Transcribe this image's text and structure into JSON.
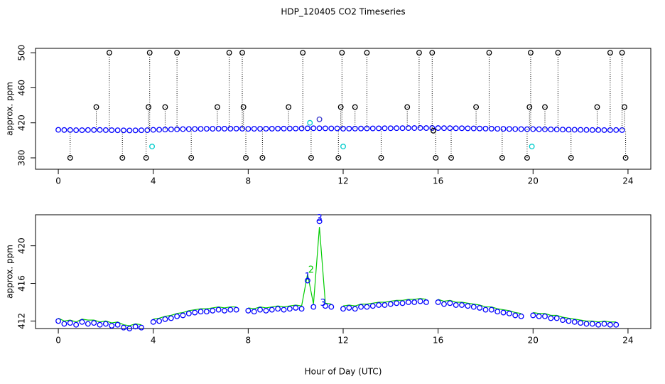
{
  "chart_data": [
    {
      "type": "scatter",
      "title": "HDP_120405  CO2 Timeseries",
      "ylabel": "approx. ppm",
      "xlim": [
        -0.96,
        24.96
      ],
      "ylim": [
        367,
        505
      ],
      "xticks": [
        0,
        4,
        8,
        12,
        16,
        20,
        24
      ],
      "yticks": [
        380,
        420,
        460,
        500
      ],
      "x": [
        0,
        0.25,
        0.5,
        0.75,
        1,
        1.25,
        1.5,
        1.75,
        2,
        2.25,
        2.5,
        2.75,
        3,
        3.25,
        3.5,
        3.75,
        4,
        4.25,
        4.5,
        4.75,
        5,
        5.25,
        5.5,
        5.75,
        6,
        6.25,
        6.5,
        6.75,
        7,
        7.25,
        7.5,
        7.75,
        8,
        8.25,
        8.5,
        8.75,
        9,
        9.25,
        9.5,
        9.75,
        10,
        10.25,
        10.5,
        10.75,
        11,
        11.25,
        11.5,
        11.75,
        12,
        12.25,
        12.5,
        12.75,
        13,
        13.25,
        13.5,
        13.75,
        14,
        14.25,
        14.5,
        14.75,
        15,
        15.25,
        15.5,
        15.75,
        16,
        16.25,
        16.5,
        16.75,
        17,
        17.25,
        17.5,
        17.75,
        18,
        18.25,
        18.5,
        18.75,
        19,
        19.25,
        19.5,
        19.75,
        20,
        20.25,
        20.5,
        20.75,
        21,
        21.25,
        21.5,
        21.75,
        22,
        22.25,
        22.5,
        22.75,
        23,
        23.25,
        23.5,
        23.75
      ],
      "series": [
        {
          "color": "#0000ff",
          "values": [
            412.0,
            411.8,
            411.8,
            411.6,
            411.6,
            411.8,
            411.8,
            411.9,
            411.7,
            411.6,
            411.5,
            411.4,
            411.3,
            411.4,
            411.5,
            411.6,
            412.0,
            412.1,
            412.3,
            412.5,
            412.6,
            412.8,
            412.9,
            413.0,
            413.1,
            413.2,
            413.2,
            413.3,
            413.3,
            413.3,
            413.4,
            413.3,
            413.1,
            413.2,
            413.2,
            413.3,
            413.3,
            413.4,
            413.4,
            413.5,
            413.5,
            413.6,
            413.7,
            413.8,
            413.8,
            413.7,
            413.6,
            413.6,
            413.3,
            413.4,
            413.4,
            413.5,
            413.6,
            413.6,
            413.7,
            413.8,
            413.8,
            413.9,
            413.9,
            414.0,
            414.0,
            414.1,
            414.0,
            414.1,
            414.0,
            413.9,
            413.9,
            413.8,
            413.8,
            413.7,
            413.6,
            413.5,
            413.4,
            413.3,
            413.2,
            413.1,
            413.0,
            412.9,
            412.8,
            412.7,
            412.8,
            412.7,
            412.6,
            412.5,
            412.4,
            412.3,
            412.2,
            412.1,
            412.0,
            411.9,
            411.8,
            411.8,
            411.7,
            411.7,
            411.8,
            411.7
          ]
        },
        {
          "color": "#000000",
          "drop_lines": true,
          "x": [
            0.5,
            1.6,
            2.15,
            2.7,
            3.7,
            3.8,
            3.85,
            4.5,
            5.0,
            5.6,
            6.7,
            7.2,
            7.75,
            7.8,
            7.9,
            8.6,
            9.7,
            10.3,
            10.65,
            11.8,
            11.9,
            11.95,
            12.5,
            13.0,
            13.6,
            14.7,
            15.2,
            15.75,
            15.8,
            15.9,
            16.55,
            17.6,
            18.15,
            18.7,
            19.75,
            19.85,
            19.9,
            20.5,
            21.05,
            21.6,
            22.7,
            23.25,
            23.75,
            23.85,
            23.9
          ],
          "values": [
            380,
            438,
            500,
            380,
            380,
            438,
            500,
            438,
            500,
            380,
            438,
            500,
            500,
            438,
            380,
            380,
            438,
            500,
            380,
            380,
            438,
            500,
            438,
            500,
            380,
            438,
            500,
            500,
            411,
            380,
            380,
            438,
            500,
            380,
            380,
            438,
            500,
            438,
            500,
            380,
            438,
            500,
            500,
            438,
            380
          ]
        },
        {
          "color": "#00cccc",
          "x": [
            3.95,
            10.6,
            12.0,
            19.95
          ],
          "values": [
            393,
            420,
            393,
            393
          ]
        },
        {
          "color": "#3333cc",
          "x": [
            11.0
          ],
          "values": [
            424
          ]
        }
      ]
    },
    {
      "type": "scatter",
      "ylabel": "approx. ppm",
      "xlabel": "Hour of Day (UTC)",
      "xlim": [
        -0.96,
        24.96
      ],
      "ylim": [
        411.2,
        423.3
      ],
      "xticks": [
        0,
        4,
        8,
        12,
        16,
        20,
        24
      ],
      "yticks": [
        412,
        416,
        420
      ],
      "x": [
        0,
        0.25,
        0.5,
        0.75,
        1,
        1.25,
        1.5,
        1.75,
        2,
        2.25,
        2.5,
        2.75,
        3,
        3.25,
        3.5,
        3.75,
        4,
        4.25,
        4.5,
        4.75,
        5,
        5.25,
        5.5,
        5.75,
        6,
        6.25,
        6.5,
        6.75,
        7,
        7.25,
        7.5,
        7.75,
        8,
        8.25,
        8.5,
        8.75,
        9,
        9.25,
        9.5,
        9.75,
        10,
        10.25,
        10.5,
        10.75,
        11,
        11.25,
        11.5,
        11.75,
        12,
        12.25,
        12.5,
        12.75,
        13,
        13.25,
        13.5,
        13.75,
        14,
        14.25,
        14.5,
        14.75,
        15,
        15.25,
        15.5,
        15.75,
        16,
        16.25,
        16.5,
        16.75,
        17,
        17.25,
        17.5,
        17.75,
        18,
        18.25,
        18.5,
        18.75,
        19,
        19.25,
        19.5,
        19.75,
        20,
        20.25,
        20.5,
        20.75,
        21,
        21.25,
        21.5,
        21.75,
        22,
        22.25,
        22.5,
        22.75,
        23,
        23.25,
        23.5,
        23.75
      ],
      "series": [
        {
          "color": "#00cc00",
          "style": "line",
          "values": [
            412.3,
            412.0,
            412.1,
            411.9,
            412.2,
            412.1,
            412.1,
            411.9,
            412.0,
            411.8,
            411.9,
            411.6,
            411.5,
            411.7,
            411.6,
            null,
            412.2,
            412.3,
            412.5,
            412.6,
            412.8,
            412.9,
            413.1,
            413.2,
            413.3,
            413.3,
            413.4,
            413.5,
            413.4,
            413.5,
            413.5,
            null,
            413.4,
            413.3,
            413.5,
            413.4,
            413.5,
            413.6,
            413.5,
            413.6,
            413.7,
            413.6,
            417.0,
            413.8,
            422.0,
            413.9,
            413.8,
            null,
            413.6,
            413.7,
            413.6,
            413.8,
            413.8,
            413.9,
            414.0,
            414.0,
            414.1,
            414.2,
            414.2,
            414.3,
            414.3,
            414.4,
            414.3,
            null,
            414.3,
            414.1,
            414.2,
            414.0,
            414.0,
            413.9,
            413.8,
            413.7,
            413.5,
            413.5,
            413.3,
            413.2,
            413.1,
            412.9,
            412.8,
            null,
            412.9,
            412.8,
            412.8,
            412.6,
            412.6,
            412.4,
            412.3,
            412.2,
            412.1,
            412.0,
            412.0,
            411.9,
            412.0,
            411.9,
            411.9,
            null
          ]
        },
        {
          "color": "#0000ff",
          "values": [
            412.0,
            411.7,
            411.8,
            411.6,
            411.9,
            411.7,
            411.8,
            411.6,
            411.7,
            411.5,
            411.6,
            411.3,
            411.2,
            411.4,
            411.3,
            null,
            411.9,
            412.0,
            412.2,
            412.3,
            412.5,
            412.6,
            412.8,
            412.9,
            413.0,
            413.0,
            413.1,
            413.2,
            413.1,
            413.2,
            413.2,
            null,
            413.1,
            413.0,
            413.2,
            413.1,
            413.2,
            413.3,
            413.2,
            413.3,
            413.4,
            413.3,
            416.3,
            413.5,
            422.6,
            413.6,
            413.5,
            null,
            413.3,
            413.4,
            413.3,
            413.5,
            413.5,
            413.6,
            413.7,
            413.7,
            413.8,
            413.9,
            413.9,
            414.0,
            414.0,
            414.1,
            414.0,
            null,
            414.0,
            413.8,
            413.9,
            413.7,
            413.7,
            413.6,
            413.5,
            413.4,
            413.2,
            413.2,
            413.0,
            412.9,
            412.8,
            412.6,
            412.5,
            null,
            412.6,
            412.5,
            412.5,
            412.3,
            412.3,
            412.1,
            412.0,
            411.9,
            411.8,
            411.7,
            411.7,
            411.6,
            411.7,
            411.6,
            411.6,
            null
          ]
        }
      ],
      "annotations": [
        {
          "x": 11.0,
          "y": 422.9,
          "text": "3",
          "color": "#0000ff"
        },
        {
          "x": 10.65,
          "y": 417.4,
          "text": "2",
          "color": "#00cc00"
        },
        {
          "x": 10.5,
          "y": 416.7,
          "text": "1",
          "color": "#0000ff"
        },
        {
          "x": 11.15,
          "y": 413.9,
          "text": "3",
          "color": "#0000ff"
        }
      ]
    }
  ]
}
